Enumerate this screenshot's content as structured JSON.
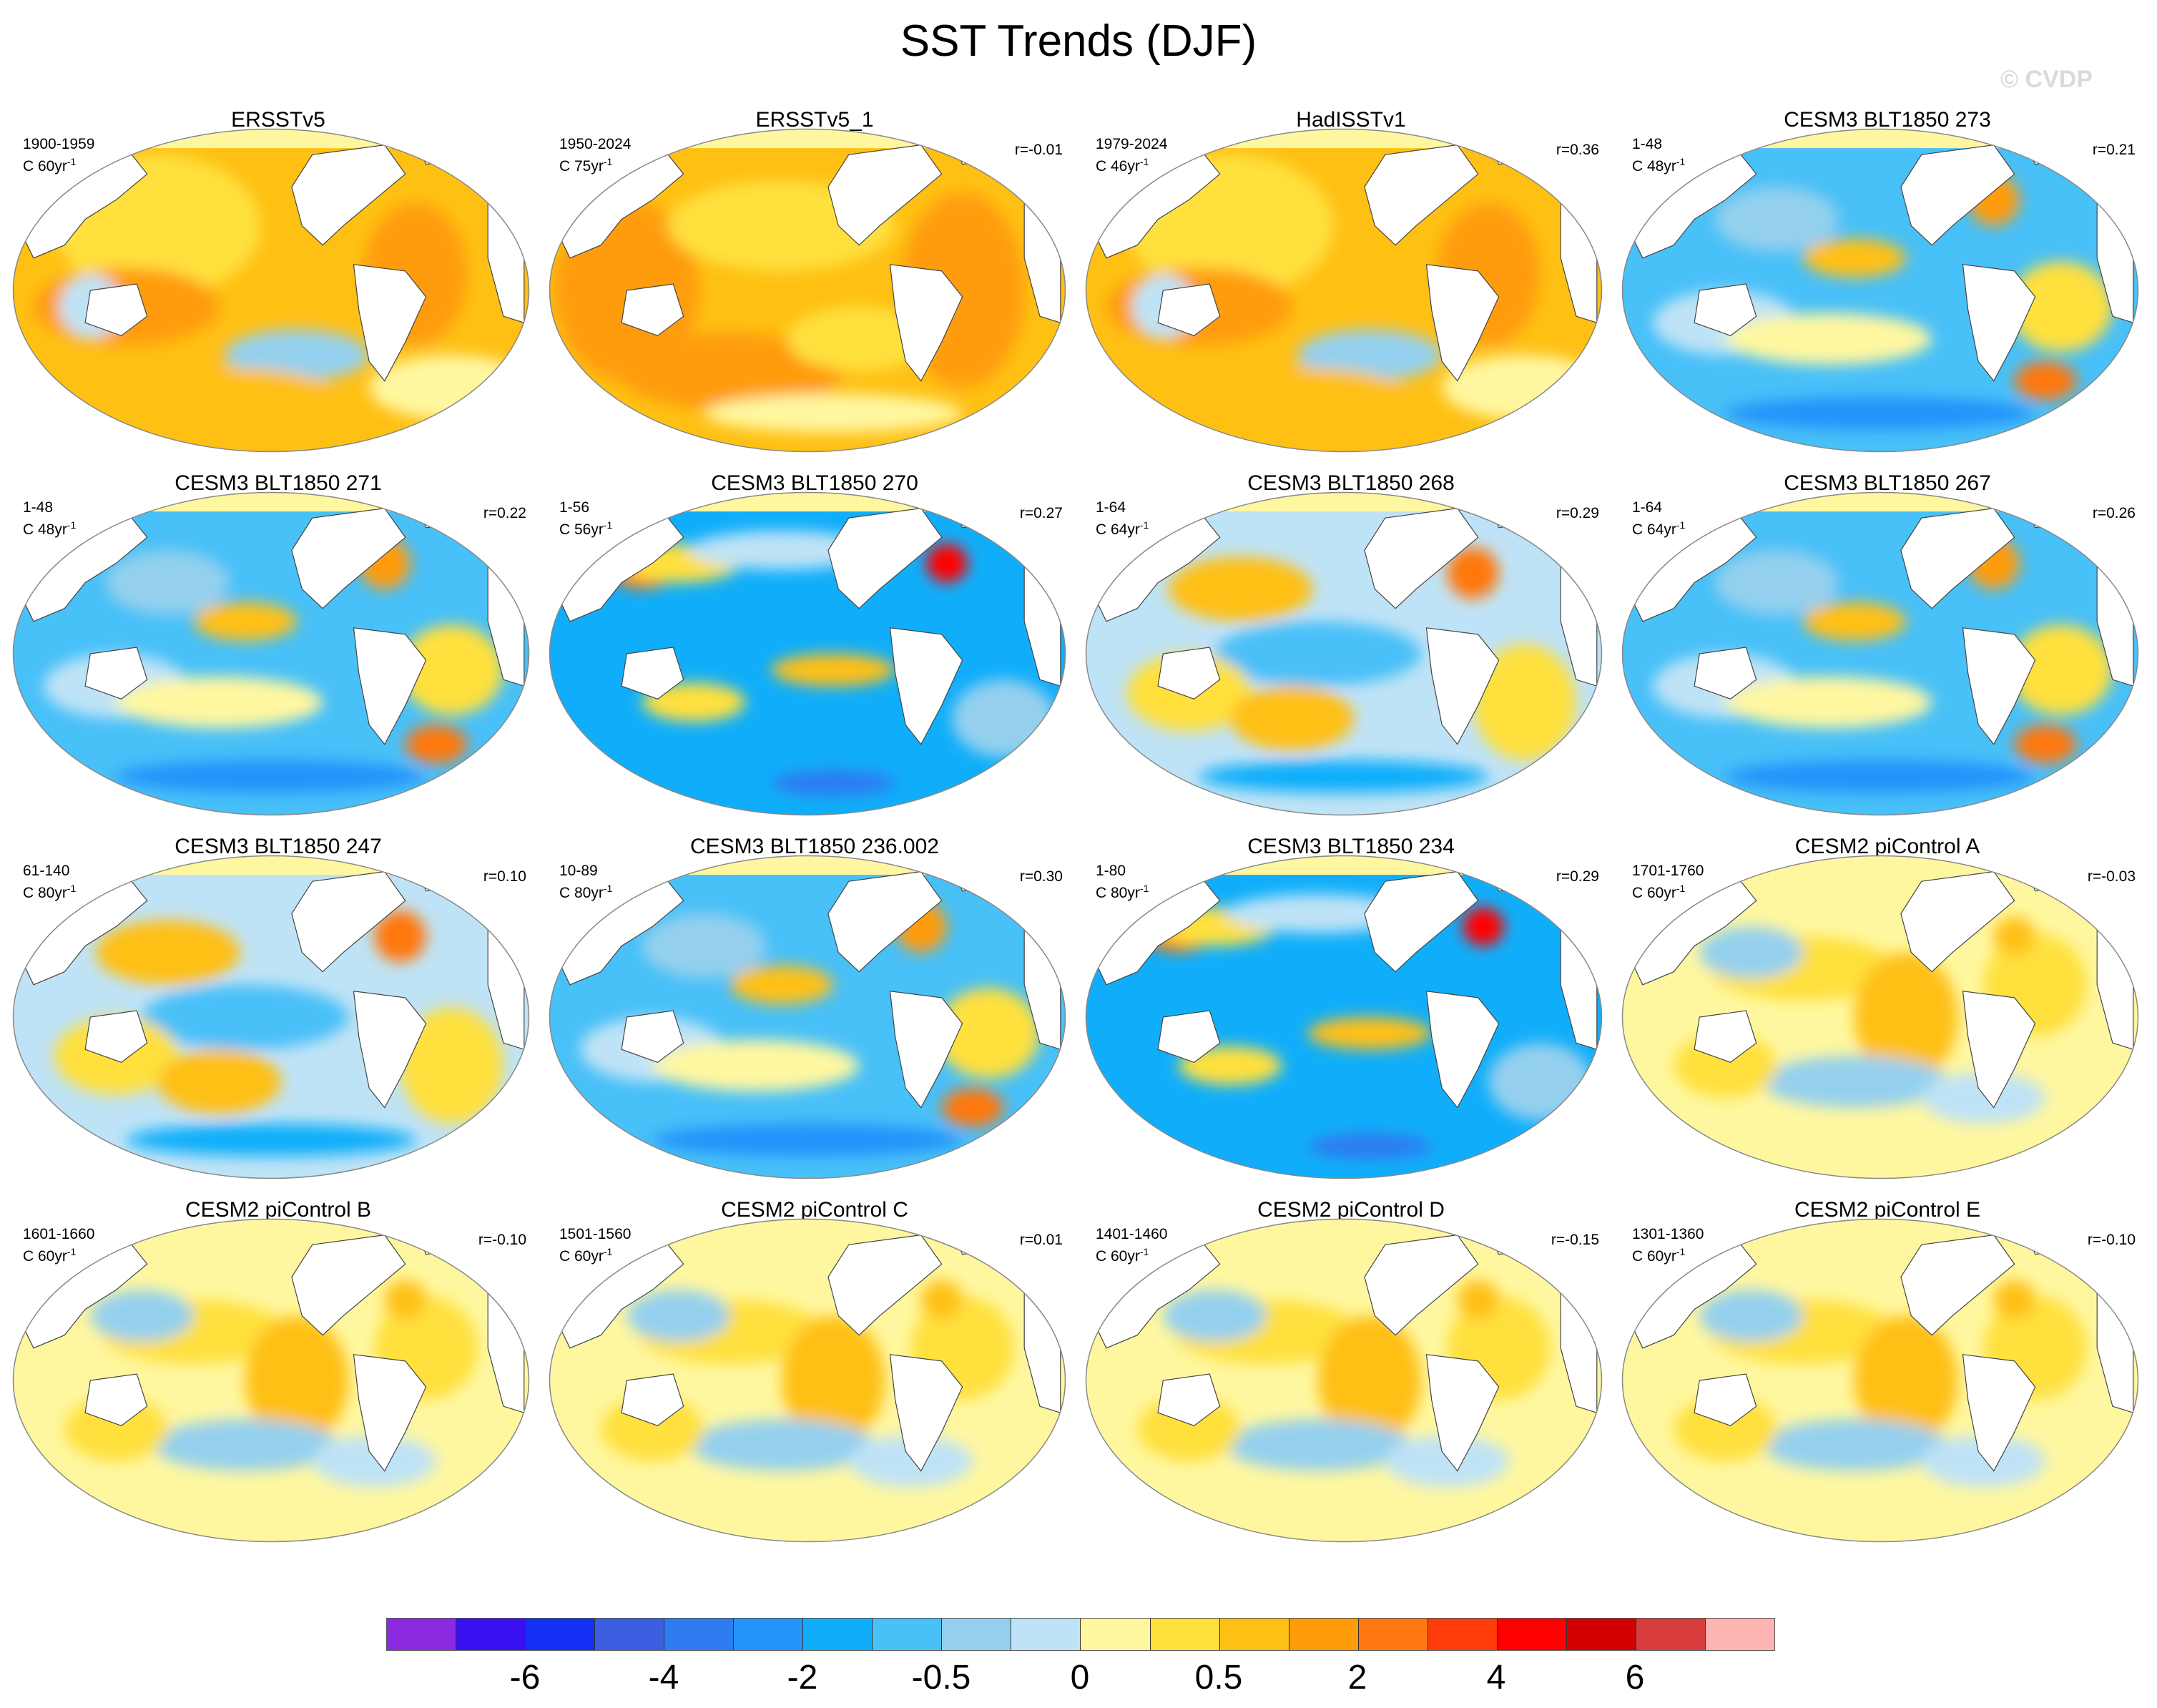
{
  "page": {
    "title": "SST Trends (DJF)",
    "watermark": "© CVDP"
  },
  "chart_data": {
    "type": "heatmap",
    "title": "SST Trends (DJF)",
    "colorbar": {
      "colors": [
        "#8a2be2",
        "#3a10f0",
        "#1430f5",
        "#3c5ee0",
        "#2e7cf0",
        "#2493fa",
        "#10aefa",
        "#48c0f8",
        "#94d0ee",
        "#bfe3f6",
        "#fff7a0",
        "#ffe03c",
        "#ffc014",
        "#ff9c0a",
        "#ff7810",
        "#ff3c0a",
        "#ff0000",
        "#d20000",
        "#d83c3c",
        "#ffb4b4"
      ],
      "labels": [
        "-6",
        "-4",
        "-2",
        "-0.5",
        "0",
        "0.5",
        "2",
        "4",
        "6"
      ],
      "label_boundaries": [
        2,
        4,
        6,
        8,
        10,
        12,
        14,
        16,
        18
      ]
    },
    "panels": [
      {
        "title": "ERSSTv5",
        "period": "1900-1959",
        "units": "C 60yr",
        "r": "",
        "pattern": "warm"
      },
      {
        "title": "ERSSTv5_1",
        "period": "1950-2024",
        "units": "C 75yr",
        "r": "r=-0.01",
        "pattern": "hot"
      },
      {
        "title": "HadISSTv1",
        "period": "1979-2024",
        "units": "C 46yr",
        "r": "r=0.36",
        "pattern": "warm"
      },
      {
        "title": "CESM3 BLT1850 273",
        "period": "1-48",
        "units": "C 48yr",
        "r": "r=0.21",
        "pattern": "cool"
      },
      {
        "title": "CESM3 BLT1850 271",
        "period": "1-48",
        "units": "C 48yr",
        "r": "r=0.22",
        "pattern": "cool"
      },
      {
        "title": "CESM3 BLT1850 270",
        "period": "1-56",
        "units": "C 56yr",
        "r": "r=0.27",
        "pattern": "cold"
      },
      {
        "title": "CESM3 BLT1850 268",
        "period": "1-64",
        "units": "C 64yr",
        "r": "r=0.29",
        "pattern": "mixed"
      },
      {
        "title": "CESM3 BLT1850 267",
        "period": "1-64",
        "units": "C 64yr",
        "r": "r=0.26",
        "pattern": "cool"
      },
      {
        "title": "CESM3 BLT1850 247",
        "period": "61-140",
        "units": "C 80yr",
        "r": "r=0.10",
        "pattern": "mixed"
      },
      {
        "title": "CESM3 BLT1850 236.002",
        "period": "10-89",
        "units": "C 80yr",
        "r": "r=0.30",
        "pattern": "cool"
      },
      {
        "title": "CESM3 BLT1850 234",
        "period": "1-80",
        "units": "C 80yr",
        "r": "r=0.29",
        "pattern": "cold"
      },
      {
        "title": "CESM2 piControl A",
        "period": "1701-1760",
        "units": "C 60yr",
        "r": "r=-0.03",
        "pattern": "neutral"
      },
      {
        "title": "CESM2 piControl B",
        "period": "1601-1660",
        "units": "C 60yr",
        "r": "r=-0.10",
        "pattern": "neutral"
      },
      {
        "title": "CESM2 piControl C",
        "period": "1501-1560",
        "units": "C 60yr",
        "r": "r=0.01",
        "pattern": "neutral"
      },
      {
        "title": "CESM2 piControl D",
        "period": "1401-1460",
        "units": "C 60yr",
        "r": "r=-0.15",
        "pattern": "neutral"
      },
      {
        "title": "CESM2 piControl E",
        "period": "1301-1360",
        "units": "C 60yr",
        "r": "r=-0.10",
        "pattern": "neutral"
      }
    ]
  }
}
